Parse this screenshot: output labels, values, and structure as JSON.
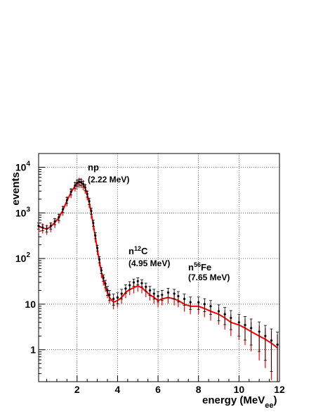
{
  "chart_data": {
    "type": "scatter",
    "title": "",
    "xlabel": "energy (MeV",
    "xlabel_sub": "ee",
    "xlabel_close": ")",
    "ylabel": "events",
    "xlim": [
      0.1,
      12
    ],
    "ylim": [
      0.2,
      20000
    ],
    "yscale": "log",
    "grid": true,
    "x_ticks": [
      "2",
      "4",
      "6",
      "8",
      "10",
      "12"
    ],
    "y_ticks": [
      {
        "v": 1,
        "base": "1",
        "exp": ""
      },
      {
        "v": 10,
        "base": "10",
        "exp": ""
      },
      {
        "v": 100,
        "base": "10",
        "exp": "2"
      },
      {
        "v": 1000,
        "base": "10",
        "exp": "3"
      },
      {
        "v": 10000,
        "base": "10",
        "exp": "4"
      }
    ],
    "colors": {
      "data": "#000000",
      "simulation": "#ff0000",
      "grid": "#000000"
    },
    "peaks": [
      {
        "name": "np",
        "pre": "",
        "sup": "",
        "post": "",
        "energy": "(2.22 MeV)",
        "x": 2.22
      },
      {
        "name": "",
        "pre": "n",
        "sup": "12",
        "post": "C",
        "energy": "(4.95 MeV)",
        "x": 4.95
      },
      {
        "name": "",
        "pre": "n",
        "sup": "56",
        "post": "Fe",
        "energy": "(7.65 MeV)",
        "x": 7.65
      }
    ],
    "series": [
      {
        "role": "data",
        "style": "points-with-error-bars",
        "x": [
          0.1,
          0.3,
          0.5,
          0.7,
          0.9,
          1.1,
          1.3,
          1.5,
          1.7,
          1.9,
          2.0,
          2.1,
          2.2,
          2.3,
          2.4,
          2.5,
          2.6,
          2.7,
          2.8,
          2.9,
          3.0,
          3.1,
          3.2,
          3.3,
          3.4,
          3.5,
          3.6,
          3.8,
          4.0,
          4.2,
          4.4,
          4.6,
          4.8,
          5.0,
          5.2,
          5.4,
          5.6,
          5.8,
          6.0,
          6.2,
          6.5,
          6.8,
          7.0,
          7.3,
          7.6,
          8.0,
          8.3,
          8.6,
          9.0,
          9.3,
          9.6,
          10.0,
          10.3,
          10.6,
          11.0,
          11.3,
          11.6,
          11.9
        ],
        "y": [
          520,
          480,
          450,
          520,
          650,
          800,
          1200,
          1900,
          2900,
          4000,
          4500,
          4800,
          4700,
          4300,
          3600,
          2600,
          1800,
          1100,
          600,
          320,
          170,
          95,
          55,
          38,
          28,
          20,
          16,
          13,
          14,
          17,
          22,
          26,
          30,
          32,
          29,
          24,
          20,
          17,
          15,
          16,
          18,
          17,
          15,
          13,
          11,
          11,
          10,
          9,
          7,
          6,
          5,
          4,
          3.5,
          3,
          2.5,
          2,
          1.6,
          1.3
        ]
      },
      {
        "role": "simulation",
        "style": "histogram-with-error-bars",
        "x": [
          0.1,
          0.3,
          0.5,
          0.7,
          0.9,
          1.1,
          1.3,
          1.5,
          1.7,
          1.9,
          2.0,
          2.1,
          2.2,
          2.3,
          2.4,
          2.5,
          2.6,
          2.7,
          2.8,
          2.9,
          3.0,
          3.1,
          3.2,
          3.3,
          3.4,
          3.5,
          3.6,
          3.8,
          4.0,
          4.2,
          4.4,
          4.6,
          4.8,
          5.0,
          5.2,
          5.4,
          5.6,
          5.8,
          6.0,
          6.2,
          6.5,
          6.8,
          7.0,
          7.3,
          7.6,
          8.0,
          8.3,
          8.6,
          9.0,
          9.3,
          9.6,
          10.0,
          10.3,
          10.6,
          11.0,
          11.3,
          11.6,
          11.9
        ],
        "y": [
          500,
          470,
          440,
          500,
          620,
          780,
          1150,
          1850,
          2800,
          3900,
          4400,
          4700,
          4650,
          4200,
          3500,
          2500,
          1700,
          1000,
          560,
          300,
          160,
          90,
          50,
          34,
          25,
          18,
          14,
          11,
          12,
          14,
          18,
          21,
          23,
          25,
          23,
          19,
          16,
          14,
          12,
          13,
          14,
          13,
          12,
          10,
          9,
          9,
          8,
          7,
          6,
          5,
          4,
          3.5,
          3,
          2.5,
          2,
          1.7,
          1.4,
          1.1
        ]
      }
    ]
  }
}
